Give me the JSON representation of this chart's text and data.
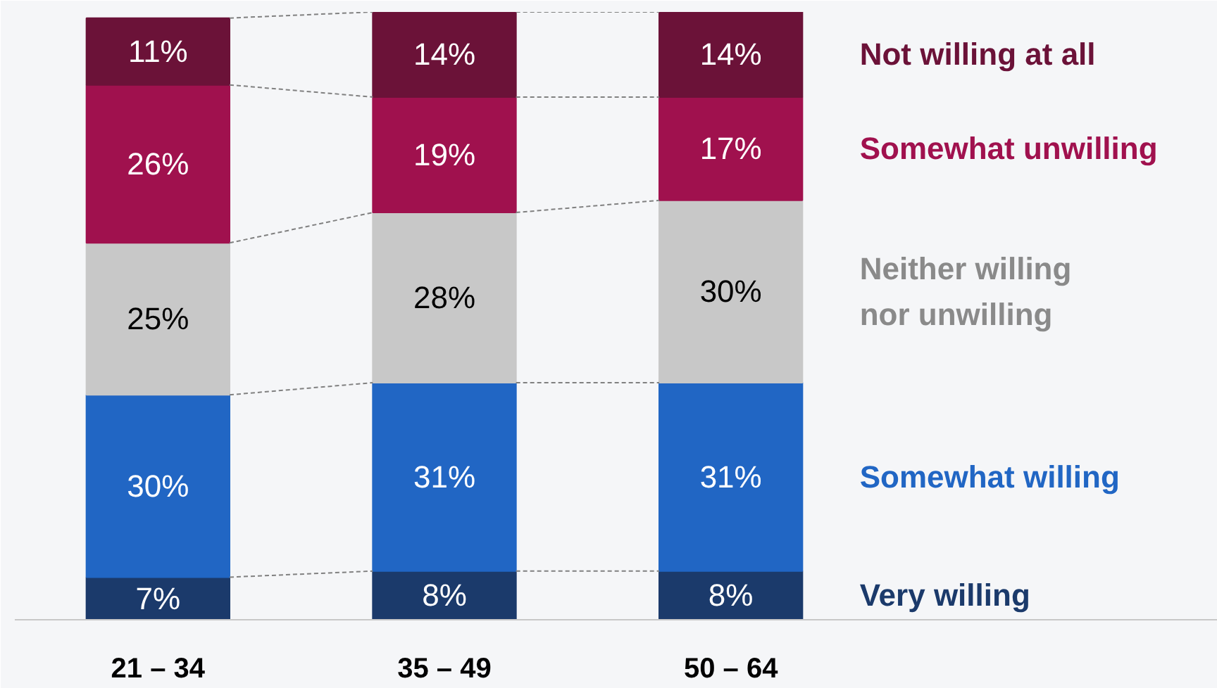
{
  "chart_data": {
    "type": "bar",
    "stacked": true,
    "legend": "right",
    "grid": false,
    "categories": [
      "21 – 34",
      "35 – 49",
      "50 – 64"
    ],
    "series": [
      {
        "name": "Very willing",
        "color": "#1b3a6b",
        "values": [
          7,
          8,
          8
        ],
        "value_labels": [
          "7%",
          "8%",
          "8%"
        ]
      },
      {
        "name": "Somewhat willing",
        "color": "#2166c4",
        "values": [
          30,
          31,
          31
        ],
        "value_labels": [
          "30%",
          "31%",
          "31%"
        ]
      },
      {
        "name": "Neither willing nor unwilling",
        "color": "#c8c8c8",
        "values": [
          25,
          28,
          30
        ],
        "value_labels": [
          "25%",
          "28%",
          "30%"
        ]
      },
      {
        "name": "Somewhat unwilling",
        "color": "#a0114e",
        "values": [
          26,
          19,
          17
        ],
        "value_labels": [
          "26%",
          "19%",
          "17%"
        ]
      },
      {
        "name": "Not willing at all",
        "color": "#6b1238",
        "values": [
          11,
          14,
          14
        ],
        "value_labels": [
          "11%",
          "14%",
          "14%"
        ]
      }
    ]
  }
}
